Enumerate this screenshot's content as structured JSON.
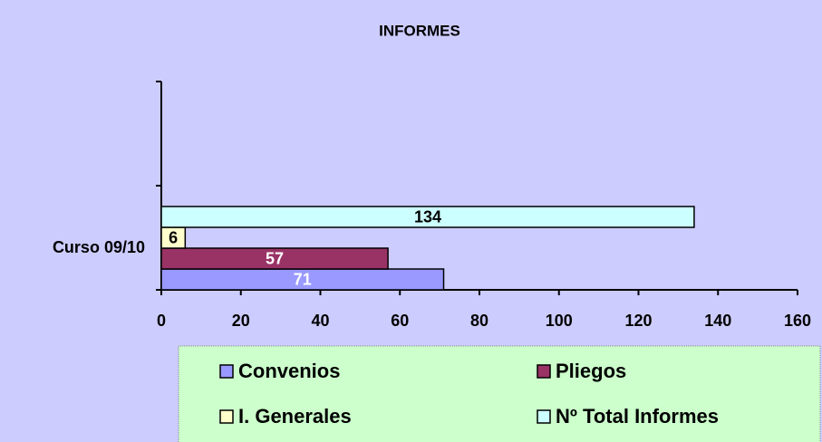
{
  "chart_data": {
    "type": "hbar",
    "title": "INFORMES",
    "categories": [
      "Curso 09/10",
      null
    ],
    "series": [
      {
        "name": "Convenios",
        "color": "#9999ff",
        "label_color": "#ffffff",
        "values": [
          71,
          null
        ]
      },
      {
        "name": "Pliegos",
        "color": "#993366",
        "label_color": "#ffffff",
        "values": [
          57,
          null
        ]
      },
      {
        "name": "I. Generales",
        "color": "#ffffcc",
        "label_color": "#000000",
        "values": [
          6,
          null
        ]
      },
      {
        "name": "Nº Total Informes",
        "color": "#ccffff",
        "label_color": "#000000",
        "values": [
          134,
          null
        ]
      }
    ],
    "xlim": [
      0,
      160
    ],
    "xticks": [
      0,
      20,
      40,
      60,
      80,
      100,
      120,
      140,
      160
    ],
    "legend": "bottom"
  }
}
